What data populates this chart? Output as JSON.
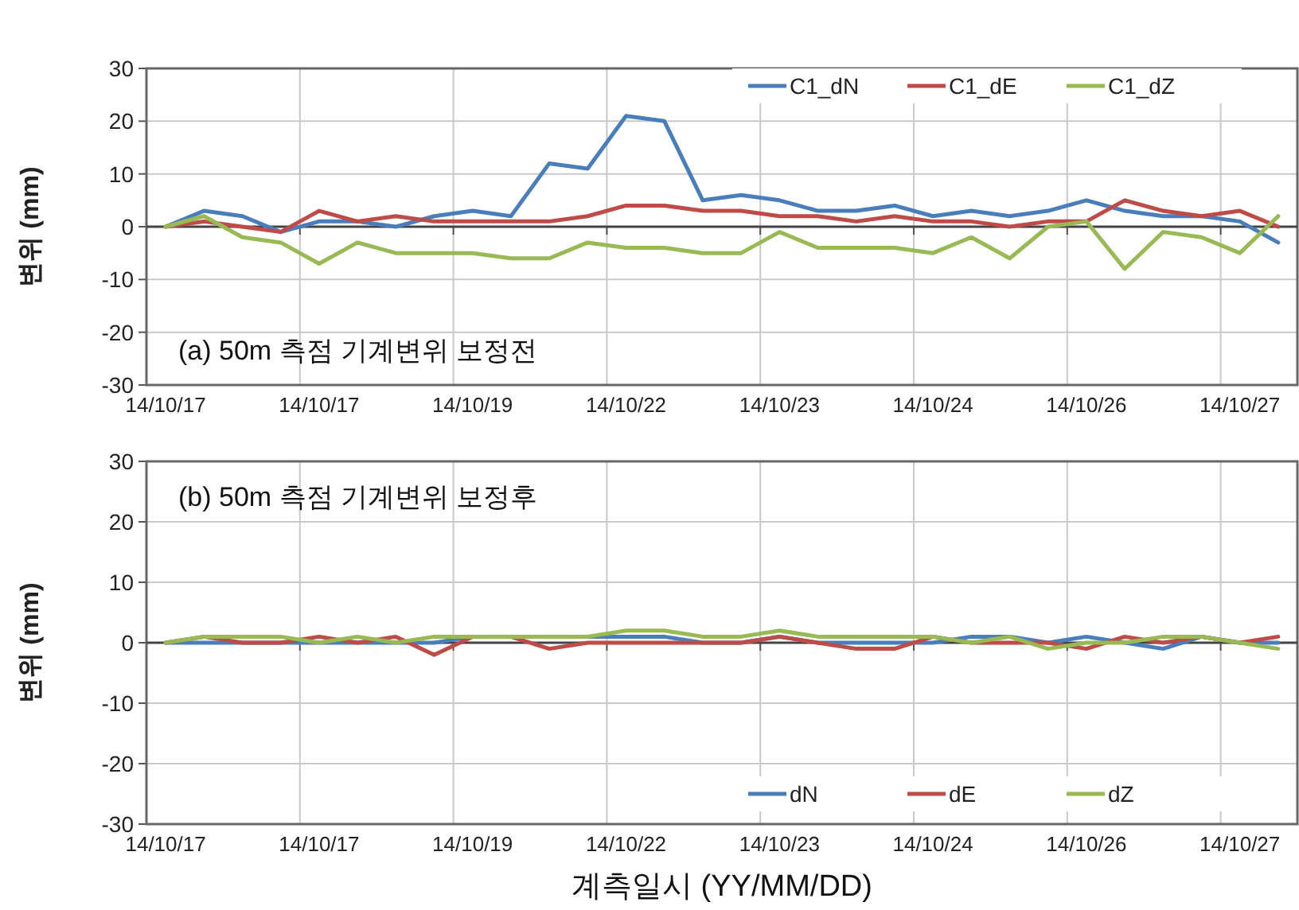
{
  "chart_data": [
    {
      "type": "line",
      "ylabel": "변위 (mm)",
      "annotations": [
        "(a) 50m 측점 기계변위 보정전"
      ],
      "categories": [
        "14/10/17",
        null,
        null,
        null,
        "14/10/17",
        null,
        null,
        null,
        "14/10/19",
        null,
        null,
        null,
        "14/10/22",
        null,
        null,
        null,
        "14/10/23",
        null,
        null,
        null,
        "14/10/24",
        null,
        null,
        null,
        "14/10/26",
        null,
        null,
        null,
        "14/10/27",
        null
      ],
      "series": [
        {
          "name": "C1_dN",
          "color": "#4a7ebb",
          "values": [
            0,
            3,
            2,
            -1,
            1,
            1,
            0,
            2,
            3,
            2,
            12,
            11,
            21,
            20,
            5,
            6,
            5,
            3,
            3,
            4,
            2,
            3,
            2,
            3,
            5,
            3,
            2,
            2,
            1,
            -3
          ]
        },
        {
          "name": "C1_dE",
          "color": "#be4b48",
          "values": [
            0,
            1,
            0,
            -1,
            3,
            1,
            2,
            1,
            1,
            1,
            1,
            2,
            4,
            4,
            3,
            3,
            2,
            2,
            1,
            2,
            1,
            1,
            0,
            1,
            1,
            5,
            3,
            2,
            3,
            0
          ]
        },
        {
          "name": "C1_dZ",
          "color": "#98b954",
          "values": [
            0,
            2,
            -2,
            -3,
            -7,
            -3,
            -5,
            -5,
            -5,
            -6,
            -6,
            -3,
            -4,
            -4,
            -5,
            -5,
            -1,
            -4,
            -4,
            -4,
            -5,
            -2,
            -6,
            0,
            1,
            -8,
            -1,
            -2,
            -5,
            2
          ]
        }
      ],
      "ylim": [
        -30,
        30
      ],
      "yticks": [
        -30,
        -20,
        -10,
        0,
        10,
        20,
        30
      ],
      "grid": true,
      "legend": "top right",
      "marker": "none"
    },
    {
      "type": "line",
      "xlabel": "계측일시 (YY/MM/DD)",
      "ylabel": "변위 (mm)",
      "annotations": [
        "(b) 50m 측점 기계변위 보정후"
      ],
      "categories": [
        "14/10/17",
        null,
        null,
        null,
        "14/10/17",
        null,
        null,
        null,
        "14/10/19",
        null,
        null,
        null,
        "14/10/22",
        null,
        null,
        null,
        "14/10/23",
        null,
        null,
        null,
        "14/10/24",
        null,
        null,
        null,
        "14/10/26",
        null,
        null,
        null,
        "14/10/27",
        null
      ],
      "series": [
        {
          "name": "dN",
          "color": "#4a7ebb",
          "values": [
            0,
            0,
            0,
            0,
            0,
            0,
            0,
            0,
            1,
            1,
            1,
            1,
            1,
            1,
            0,
            0,
            1,
            0,
            0,
            0,
            0,
            1,
            1,
            0,
            1,
            0,
            -1,
            1,
            0,
            0
          ]
        },
        {
          "name": "dE",
          "color": "#be4b48",
          "values": [
            0,
            1,
            0,
            0,
            1,
            0,
            1,
            -2,
            1,
            1,
            -1,
            0,
            0,
            0,
            0,
            0,
            1,
            0,
            -1,
            -1,
            1,
            0,
            0,
            0,
            -1,
            1,
            0,
            1,
            0,
            1
          ]
        },
        {
          "name": "dZ",
          "color": "#98b954",
          "values": [
            0,
            1,
            1,
            1,
            0,
            1,
            0,
            1,
            1,
            1,
            1,
            1,
            2,
            2,
            1,
            1,
            2,
            1,
            1,
            1,
            1,
            0,
            1,
            -1,
            0,
            0,
            1,
            1,
            0,
            -1
          ]
        }
      ],
      "ylim": [
        -30,
        30
      ],
      "yticks": [
        -30,
        -20,
        -10,
        0,
        10,
        20,
        30
      ],
      "grid": true,
      "legend": "bottom right",
      "marker": "none"
    }
  ]
}
